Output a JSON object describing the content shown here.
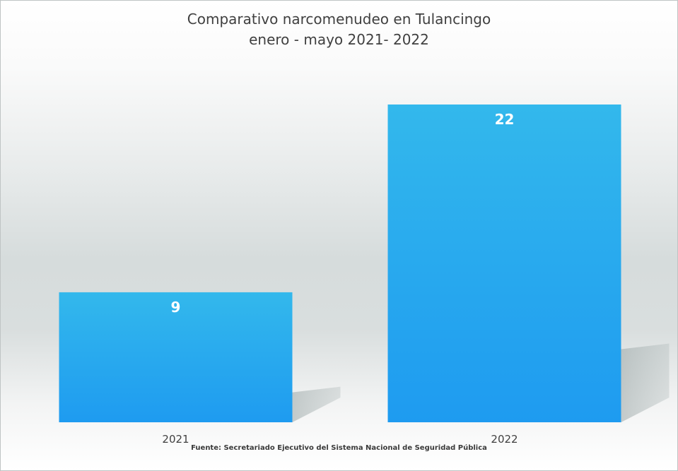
{
  "chart_data": {
    "type": "bar",
    "title": "Comparativo narcomenudeo en Tulancingo",
    "subtitle": "enero - mayo 2021- 2022",
    "categories": [
      "2021",
      "2022"
    ],
    "values": [
      9,
      22
    ],
    "data_labels": [
      "9",
      "22"
    ],
    "ylim": [
      0,
      22
    ],
    "grid": false,
    "legend": "none",
    "bar_color": "#1e9bf0",
    "bar_color_top": "#33b8ec"
  },
  "footer": {
    "source": "Fuente: Secretariado Ejecutivo del Sistema Nacional de Seguridad Pública"
  }
}
